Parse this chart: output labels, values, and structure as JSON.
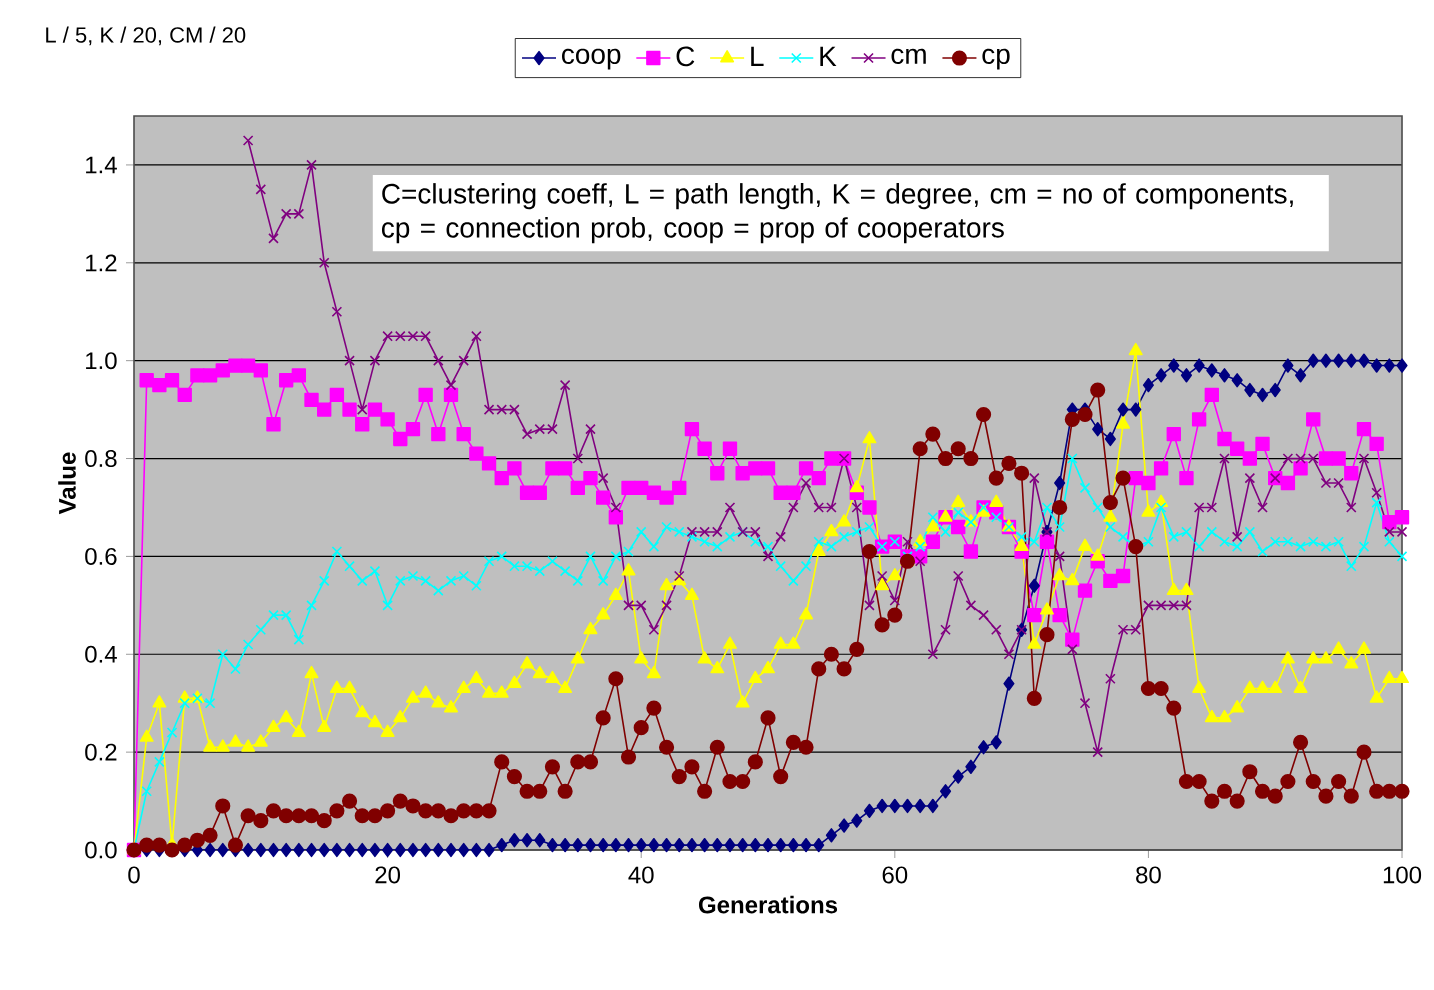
{
  "chart_data": {
    "type": "line",
    "xlabel": "Generations",
    "ylabel": "Value",
    "annotations": [
      "L / 5, K / 20, CM / 20",
      "C=clustering coeff, L = path length, K = degree, cm = no of components, cp = connection prob, coop = prop of cooperators"
    ],
    "xlim": [
      0,
      100
    ],
    "xticks": [
      0,
      20,
      40,
      60,
      80,
      100
    ],
    "ylim": [
      0,
      1.5
    ],
    "yticks": [
      {
        "value": 0,
        "label": "0.0"
      },
      0.2,
      0.4,
      0.6,
      0.8,
      {
        "value": 1,
        "label": "1.0"
      },
      1.2,
      1.4
    ],
    "grid": "y",
    "legend": "top",
    "x": [
      0,
      1,
      2,
      3,
      4,
      5,
      6,
      7,
      8,
      9,
      10,
      11,
      12,
      13,
      14,
      15,
      16,
      17,
      18,
      19,
      20,
      21,
      22,
      23,
      24,
      25,
      26,
      27,
      28,
      29,
      30,
      31,
      32,
      33,
      34,
      35,
      36,
      37,
      38,
      39,
      40,
      41,
      42,
      43,
      44,
      45,
      46,
      47,
      48,
      49,
      50,
      51,
      52,
      53,
      54,
      55,
      56,
      57,
      58,
      59,
      60,
      61,
      62,
      63,
      64,
      65,
      66,
      67,
      68,
      69,
      70,
      71,
      72,
      73,
      74,
      75,
      76,
      77,
      78,
      79,
      80,
      81,
      82,
      83,
      84,
      85,
      86,
      87,
      88,
      89,
      90,
      91,
      92,
      93,
      94,
      95,
      96,
      97,
      98,
      99,
      100
    ],
    "series": [
      {
        "name": "coop",
        "color": "#000080",
        "marker": "diamond",
        "values": [
          0,
          0,
          0,
          0,
          0,
          0,
          0,
          0,
          0,
          0,
          0,
          0,
          0,
          0,
          0,
          0,
          0,
          0,
          0,
          0,
          0,
          0,
          0,
          0,
          0,
          0,
          0,
          0,
          0,
          0.01,
          0.02,
          0.02,
          0.02,
          0.01,
          0.01,
          0.01,
          0.01,
          0.01,
          0.01,
          0.01,
          0.01,
          0.01,
          0.01,
          0.01,
          0.01,
          0.01,
          0.01,
          0.01,
          0.01,
          0.01,
          0.01,
          0.01,
          0.01,
          0.01,
          0.01,
          0.03,
          0.05,
          0.06,
          0.08,
          0.09,
          0.09,
          0.09,
          0.09,
          0.09,
          0.12,
          0.15,
          0.17,
          0.21,
          0.22,
          0.34,
          0.45,
          0.54,
          0.65,
          0.75,
          0.9,
          0.9,
          0.86,
          0.84,
          0.9,
          0.9,
          0.95,
          0.97,
          0.99,
          0.97,
          0.99,
          0.98,
          0.97,
          0.96,
          0.94,
          0.93,
          0.94,
          0.99,
          0.97,
          1.0,
          1.0,
          1.0,
          1.0,
          1.0,
          0.99,
          0.99,
          0.99
        ]
      },
      {
        "name": "C",
        "color": "#ff00ff",
        "marker": "square",
        "values": [
          0,
          0.96,
          0.95,
          0.96,
          0.93,
          0.97,
          0.97,
          0.98,
          0.99,
          0.99,
          0.98,
          0.87,
          0.96,
          0.97,
          0.92,
          0.9,
          0.93,
          0.9,
          0.87,
          0.9,
          0.88,
          0.84,
          0.86,
          0.93,
          0.85,
          0.93,
          0.85,
          0.81,
          0.79,
          0.76,
          0.78,
          0.73,
          0.73,
          0.78,
          0.78,
          0.74,
          0.76,
          0.72,
          0.68,
          0.74,
          0.74,
          0.73,
          0.72,
          0.74,
          0.86,
          0.82,
          0.77,
          0.82,
          0.77,
          0.78,
          0.78,
          0.73,
          0.73,
          0.78,
          0.76,
          0.8,
          0.8,
          0.73,
          0.7,
          0.62,
          0.63,
          0.6,
          0.6,
          0.63,
          0.68,
          0.66,
          0.61,
          0.7,
          0.69,
          0.66,
          0.61,
          0.48,
          0.63,
          0.48,
          0.43,
          0.53,
          0.59,
          0.55,
          0.56,
          0.76,
          0.75,
          0.78,
          0.85,
          0.76,
          0.88,
          0.93,
          0.84,
          0.82,
          0.8,
          0.83,
          0.76,
          0.75,
          0.78,
          0.88,
          0.8,
          0.8,
          0.77,
          0.86,
          0.83,
          0.67,
          0.68
        ]
      },
      {
        "name": "L",
        "color": "#ffff00",
        "marker": "triangle",
        "values": [
          0,
          0.23,
          0.3,
          0.01,
          0.31,
          0.31,
          0.21,
          0.21,
          0.22,
          0.21,
          0.22,
          0.25,
          0.27,
          0.24,
          0.36,
          0.25,
          0.33,
          0.33,
          0.28,
          0.26,
          0.24,
          0.27,
          0.31,
          0.32,
          0.3,
          0.29,
          0.33,
          0.35,
          0.32,
          0.32,
          0.34,
          0.38,
          0.36,
          0.35,
          0.33,
          0.39,
          0.45,
          0.48,
          0.52,
          0.57,
          0.39,
          0.36,
          0.54,
          0.55,
          0.52,
          0.39,
          0.37,
          0.42,
          0.3,
          0.35,
          0.37,
          0.42,
          0.42,
          0.48,
          0.61,
          0.65,
          0.67,
          0.74,
          0.84,
          0.54,
          0.56,
          0.59,
          0.63,
          0.66,
          0.68,
          0.71,
          0.67,
          0.69,
          0.71,
          0.66,
          0.62,
          0.42,
          0.49,
          0.56,
          0.55,
          0.62,
          0.6,
          0.68,
          0.87,
          1.02,
          0.69,
          0.71,
          0.53,
          0.53,
          0.33,
          0.27,
          0.27,
          0.29,
          0.33,
          0.33,
          0.33,
          0.39,
          0.33,
          0.39,
          0.39,
          0.41,
          0.38,
          0.41,
          0.31,
          0.35,
          0.35
        ]
      },
      {
        "name": "K",
        "color": "#00ffff",
        "marker": "cross",
        "values": [
          0,
          0.12,
          0.18,
          0.24,
          0.3,
          0.31,
          0.3,
          0.4,
          0.37,
          0.42,
          0.45,
          0.48,
          0.48,
          0.43,
          0.5,
          0.55,
          0.61,
          0.58,
          0.55,
          0.57,
          0.5,
          0.55,
          0.56,
          0.55,
          0.53,
          0.55,
          0.56,
          0.54,
          0.59,
          0.6,
          0.58,
          0.58,
          0.57,
          0.59,
          0.57,
          0.55,
          0.6,
          0.55,
          0.6,
          0.61,
          0.65,
          0.62,
          0.66,
          0.65,
          0.64,
          0.63,
          0.62,
          0.64,
          0.65,
          0.63,
          0.62,
          0.58,
          0.55,
          0.58,
          0.63,
          0.62,
          0.64,
          0.65,
          0.66,
          0.62,
          0.63,
          0.6,
          0.62,
          0.68,
          0.65,
          0.69,
          0.67,
          0.7,
          0.68,
          0.66,
          0.64,
          0.63,
          0.7,
          0.66,
          0.8,
          0.74,
          0.7,
          0.66,
          0.64,
          0.62,
          0.63,
          0.7,
          0.64,
          0.65,
          0.62,
          0.65,
          0.63,
          0.62,
          0.65,
          0.61,
          0.63,
          0.63,
          0.62,
          0.63,
          0.62,
          0.63,
          0.58,
          0.62,
          0.71,
          0.63,
          0.6
        ]
      },
      {
        "name": "cm",
        "color": "#800080",
        "marker": "cross",
        "values": [
          null,
          null,
          null,
          null,
          null,
          null,
          null,
          null,
          null,
          1.45,
          1.35,
          1.25,
          1.3,
          1.3,
          1.4,
          1.2,
          1.1,
          1.0,
          0.9,
          1.0,
          1.05,
          1.05,
          1.05,
          1.05,
          1.0,
          0.95,
          1.0,
          1.05,
          0.9,
          0.9,
          0.9,
          0.85,
          0.86,
          0.86,
          0.95,
          0.8,
          0.86,
          0.76,
          0.7,
          0.5,
          0.5,
          0.45,
          0.5,
          0.56,
          0.65,
          0.65,
          0.65,
          0.7,
          0.65,
          0.65,
          0.6,
          0.64,
          0.7,
          0.75,
          0.7,
          0.7,
          0.8,
          0.7,
          0.5,
          0.56,
          0.51,
          0.63,
          0.59,
          0.4,
          0.45,
          0.56,
          0.5,
          0.48,
          0.45,
          0.4,
          0.45,
          0.76,
          0.65,
          0.6,
          0.41,
          0.3,
          0.2,
          0.35,
          0.45,
          0.45,
          0.5,
          0.5,
          0.5,
          0.5,
          0.7,
          0.7,
          0.8,
          0.64,
          0.76,
          0.7,
          0.76,
          0.8,
          0.8,
          0.8,
          0.75,
          0.75,
          0.7,
          0.8,
          0.73,
          0.65,
          0.65
        ]
      },
      {
        "name": "cp",
        "color": "#800000",
        "marker": "circle",
        "values": [
          0,
          0.01,
          0.01,
          0,
          0.01,
          0.02,
          0.03,
          0.09,
          0.01,
          0.07,
          0.06,
          0.08,
          0.07,
          0.07,
          0.07,
          0.06,
          0.08,
          0.1,
          0.07,
          0.07,
          0.08,
          0.1,
          0.09,
          0.08,
          0.08,
          0.07,
          0.08,
          0.08,
          0.08,
          0.18,
          0.15,
          0.12,
          0.12,
          0.17,
          0.12,
          0.18,
          0.18,
          0.27,
          0.35,
          0.19,
          0.25,
          0.29,
          0.21,
          0.15,
          0.17,
          0.12,
          0.21,
          0.14,
          0.14,
          0.18,
          0.27,
          0.15,
          0.22,
          0.21,
          0.37,
          0.4,
          0.37,
          0.41,
          0.61,
          0.46,
          0.48,
          0.59,
          0.82,
          0.85,
          0.8,
          0.82,
          0.8,
          0.89,
          0.76,
          0.79,
          0.77,
          0.31,
          0.44,
          0.7,
          0.88,
          0.89,
          0.94,
          0.71,
          0.76,
          0.62,
          0.33,
          0.33,
          0.29,
          0.14,
          0.14,
          0.1,
          0.12,
          0.1,
          0.16,
          0.12,
          0.11,
          0.14,
          0.22,
          0.14,
          0.11,
          0.14,
          0.11,
          0.2,
          0.12,
          0.12,
          0.12
        ]
      }
    ]
  }
}
